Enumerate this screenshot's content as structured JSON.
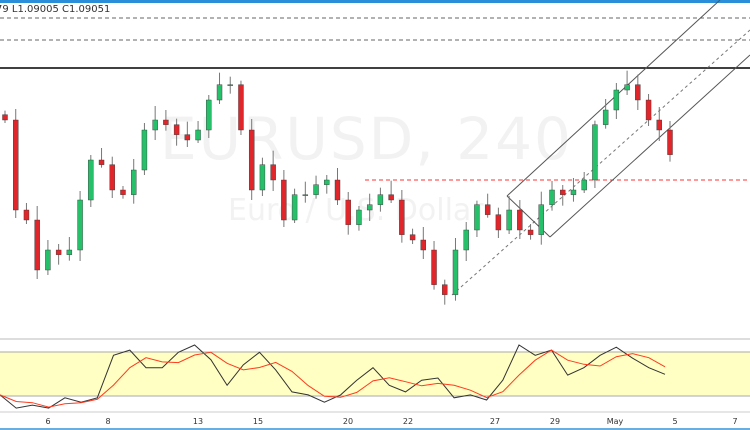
{
  "header": {
    "ohlc_text": "79 L1.09005 C1.09051"
  },
  "watermark": {
    "symbol": "EURUSD, 240",
    "name": "Euro / U.S. Dollar"
  },
  "colors": {
    "up": "#26c06a",
    "down": "#e0262b",
    "band": "#ffffc4",
    "k_line": "#333333",
    "d_line": "#ff3b1f",
    "accent": "#2a8fd8"
  },
  "chart_data": {
    "type": "candlestick",
    "title": "EURUSD, 240",
    "closes": [
      1.0995,
      1.086,
      1.0845,
      1.077,
      1.08,
      1.0793,
      1.08,
      1.0875,
      1.0935,
      1.0928,
      1.089,
      1.0883,
      1.092,
      1.098,
      1.0995,
      1.0988,
      1.0973,
      1.0965,
      1.098,
      1.1025,
      1.1048,
      1.1048,
      1.098,
      1.089,
      1.0928,
      1.0905,
      1.0845,
      1.0883,
      1.0883,
      1.0898,
      1.0905,
      1.0875,
      1.0838,
      1.086,
      1.0868,
      1.0883,
      1.0875,
      1.0823,
      1.0815,
      1.08,
      1.0748,
      1.0733,
      1.08,
      1.083,
      1.0868,
      1.0853,
      1.083,
      1.086,
      1.083,
      1.0823,
      1.0868,
      1.089,
      1.0883,
      1.089,
      1.0905,
      1.0988,
      1.101,
      1.104,
      1.1048,
      1.1025,
      1.0995,
      1.098,
      1.0943
    ],
    "levels": {
      "resistance_solid": 1.1073,
      "dashed_1": 1.1148,
      "dashed_2": 1.1115,
      "red_dashed": 1.0905
    },
    "x_ticks": [
      "6",
      "8",
      "13",
      "15",
      "20",
      "22",
      "27",
      "29",
      "May",
      "5",
      "7"
    ],
    "stochastic": {
      "k": [
        22,
        4,
        8,
        4,
        18,
        12,
        18,
        76,
        83,
        59,
        59,
        80,
        90,
        70,
        35,
        63,
        80,
        56,
        26,
        22,
        12,
        22,
        42,
        59,
        35,
        26,
        42,
        45,
        18,
        22,
        15,
        42,
        90,
        76,
        83,
        49,
        59,
        76,
        87,
        72,
        59,
        50
      ],
      "upper_band": 80,
      "lower_band": 20,
      "range": [
        0,
        100
      ]
    }
  }
}
